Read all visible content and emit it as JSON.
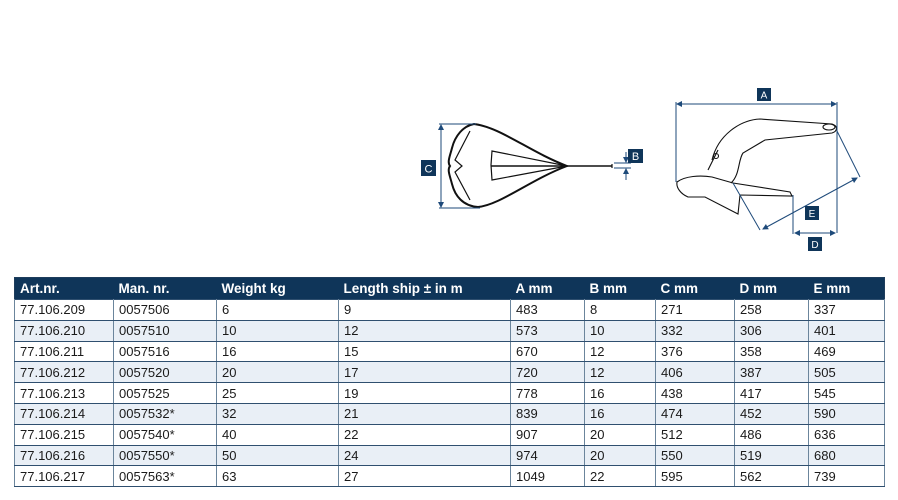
{
  "diagram_labels": {
    "a": "A",
    "b": "B",
    "c": "C",
    "d": "D",
    "e": "E"
  },
  "colors": {
    "header": "#0f3559",
    "row_alt": "#e9eff6",
    "dimension": "#1e4a7a"
  },
  "table": {
    "headers": [
      "Art.nr.",
      "Man. nr.",
      "Weight kg",
      "Length ship ± in m",
      "A mm",
      "B mm",
      "C mm",
      "D mm",
      "E mm"
    ],
    "rows": [
      [
        "77.106.209",
        "0057506",
        "6",
        "9",
        "483",
        "8",
        "271",
        "258",
        "337"
      ],
      [
        "77.106.210",
        "0057510",
        "10",
        "12",
        "573",
        "10",
        "332",
        "306",
        "401"
      ],
      [
        "77.106.211",
        "0057516",
        "16",
        "15",
        "670",
        "12",
        "376",
        "358",
        "469"
      ],
      [
        "77.106.212",
        "0057520",
        "20",
        "17",
        "720",
        "12",
        "406",
        "387",
        "505"
      ],
      [
        "77.106.213",
        "0057525",
        "25",
        "19",
        "778",
        "16",
        "438",
        "417",
        "545"
      ],
      [
        "77.106.214",
        "0057532*",
        "32",
        "21",
        "839",
        "16",
        "474",
        "452",
        "590"
      ],
      [
        "77.106.215",
        "0057540*",
        "40",
        "22",
        "907",
        "20",
        "512",
        "486",
        "636"
      ],
      [
        "77.106.216",
        "0057550*",
        "50",
        "24",
        "974",
        "20",
        "550",
        "519",
        "680"
      ],
      [
        "77.106.217",
        "0057563*",
        "63",
        "27",
        "1049",
        "22",
        "595",
        "562",
        "739"
      ]
    ]
  }
}
